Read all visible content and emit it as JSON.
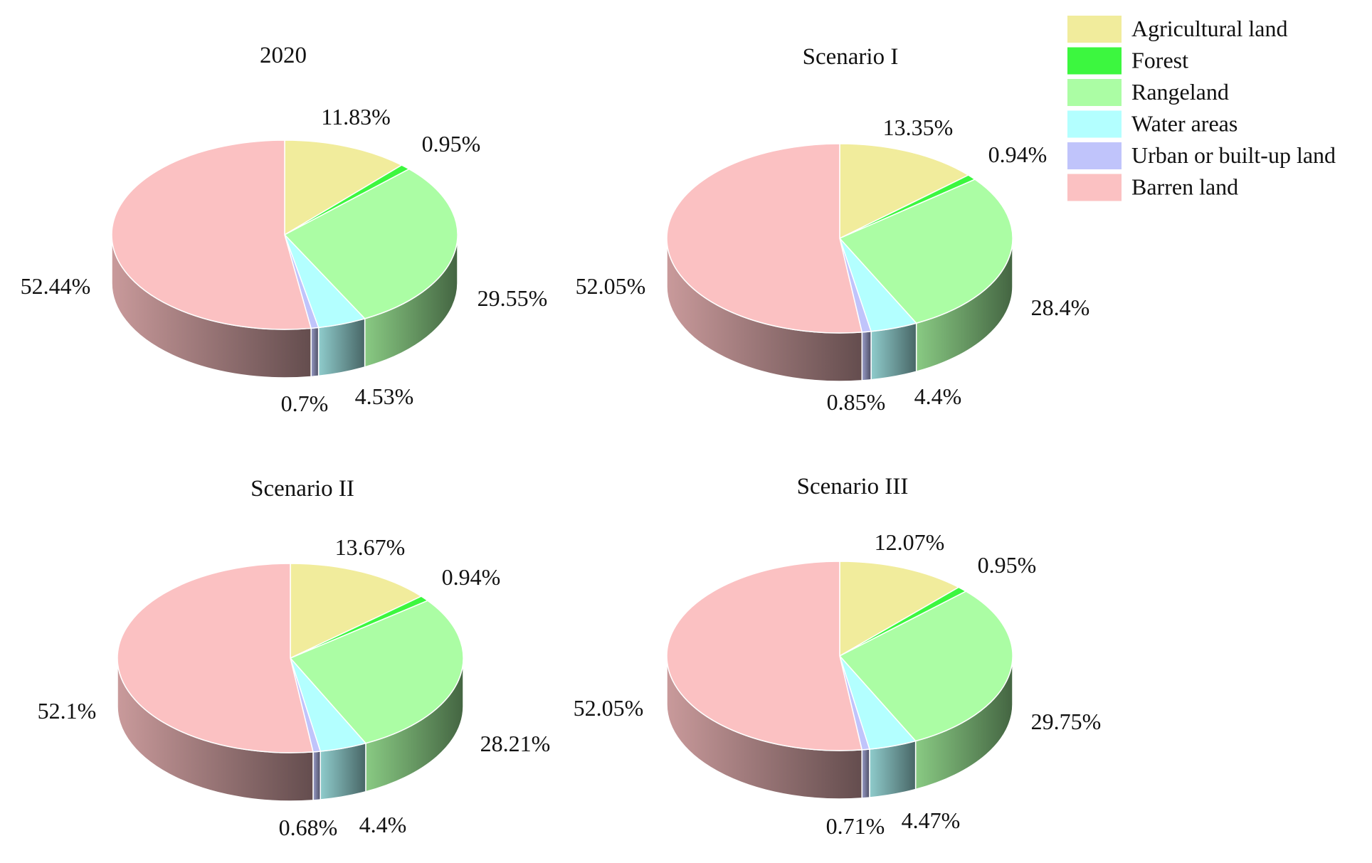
{
  "legend": {
    "position": "top-right",
    "items": [
      {
        "label": "Agricultural land",
        "color": "#f1ec9c"
      },
      {
        "label": "Forest",
        "color": "#3cf73f"
      },
      {
        "label": "Rangeland",
        "color": "#abfda4"
      },
      {
        "label": "Water areas",
        "color": "#b3ffff"
      },
      {
        "label": "Urban or built-up land",
        "color": "#c0c4fb"
      },
      {
        "label": "Barren land",
        "color": "#fbc1c2"
      }
    ]
  },
  "chart_data": [
    {
      "type": "pie",
      "title": "2020",
      "categories": [
        "Agricultural land",
        "Forest",
        "Rangeland",
        "Water areas",
        "Urban or built-up land",
        "Barren land"
      ],
      "values": [
        11.83,
        0.95,
        29.55,
        4.53,
        0.7,
        52.44
      ],
      "labels": [
        "11.83%",
        "0.95%",
        "29.55%",
        "4.53%",
        "0.7%",
        "52.44%"
      ]
    },
    {
      "type": "pie",
      "title": "Scenario I",
      "categories": [
        "Agricultural land",
        "Forest",
        "Rangeland",
        "Water areas",
        "Urban or built-up land",
        "Barren land"
      ],
      "values": [
        13.35,
        0.94,
        28.4,
        4.4,
        0.85,
        52.05
      ],
      "labels": [
        "13.35%",
        "0.94%",
        "28.4%",
        "4.4%",
        "0.85%",
        "52.05%"
      ]
    },
    {
      "type": "pie",
      "title": "Scenario II",
      "categories": [
        "Agricultural land",
        "Forest",
        "Rangeland",
        "Water areas",
        "Urban or built-up land",
        "Barren land"
      ],
      "values": [
        13.67,
        0.94,
        28.21,
        4.4,
        0.68,
        52.1
      ],
      "labels": [
        "13.67%",
        "0.94%",
        "28.21%",
        "4.4%",
        "0.68%",
        "52.1%"
      ]
    },
    {
      "type": "pie",
      "title": "Scenario III",
      "categories": [
        "Agricultural land",
        "Forest",
        "Rangeland",
        "Water areas",
        "Urban or built-up land",
        "Barren land"
      ],
      "values": [
        12.07,
        0.95,
        29.75,
        4.47,
        0.71,
        52.05
      ],
      "labels": [
        "12.07%",
        "0.95%",
        "29.75%",
        "4.47%",
        "0.71%",
        "52.05%"
      ]
    }
  ]
}
